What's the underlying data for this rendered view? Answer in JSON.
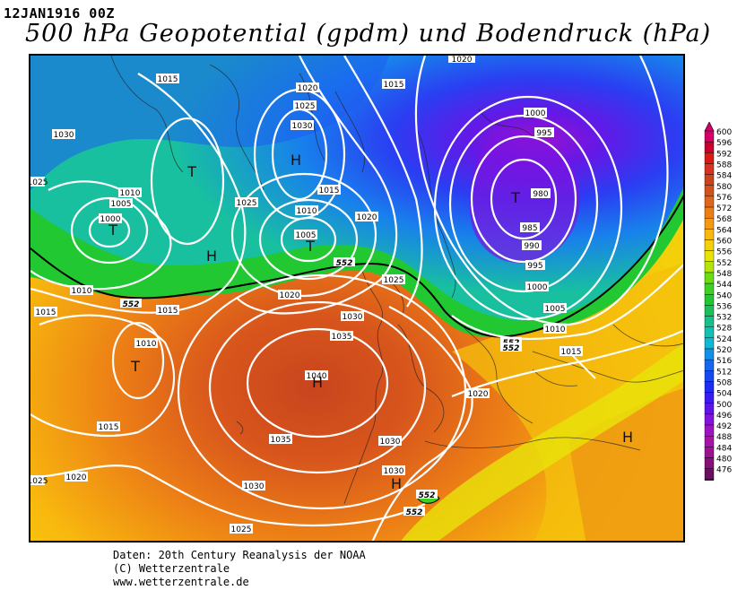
{
  "header": {
    "date": "12JAN1916 00Z",
    "title": "500 hPa Geopotential (gpdm) und Bodendruck (hPa)"
  },
  "legend": {
    "levels": [
      600,
      596,
      592,
      588,
      584,
      580,
      576,
      572,
      568,
      564,
      560,
      556,
      552,
      548,
      544,
      540,
      536,
      532,
      528,
      524,
      520,
      516,
      512,
      508,
      504,
      500,
      496,
      492,
      488,
      484,
      480,
      476
    ],
    "colors": [
      "#d4006a",
      "#c8002e",
      "#d81c14",
      "#d83220",
      "#c8441e",
      "#d2521c",
      "#e0661a",
      "#ec7e16",
      "#f49a12",
      "#f8b80e",
      "#f4d00a",
      "#e8e40a",
      "#b4e40a",
      "#6cdc14",
      "#3cd220",
      "#22c832",
      "#1cc05a",
      "#18c08c",
      "#12c0b4",
      "#10b8d4",
      "#1290e8",
      "#1468f0",
      "#1848f4",
      "#1e2cf4",
      "#3a1cf0",
      "#5e14e8",
      "#8212dc",
      "#9e12c4",
      "#a812a8",
      "#9c1290",
      "#861078",
      "#6a0e62"
    ]
  },
  "pressure_centers": [
    {
      "label": "T"
    },
    {
      "label": "H"
    },
    {
      "label": "H"
    },
    {
      "label": "T"
    },
    {
      "label": "T"
    },
    {
      "label": "T"
    },
    {
      "label": "H"
    },
    {
      "label": "T"
    },
    {
      "label": "H"
    },
    {
      "label": "H"
    }
  ],
  "isobar_labels": [
    "1015",
    "1020",
    "1025",
    "1030",
    "1015",
    "1000",
    "1030",
    "1025",
    "1010",
    "1005",
    "1000",
    "995",
    "980",
    "985",
    "990",
    "995",
    "1000",
    "1005",
    "1010",
    "1015",
    "1025",
    "1015",
    "1010",
    "1005",
    "1020",
    "1030",
    "1035",
    "1040",
    "1035",
    "1030",
    "1020",
    "1025",
    "1030",
    "1020",
    "1015",
    "1010",
    "1015",
    "1010",
    "1015",
    "1020",
    "1025",
    "1030",
    "1025",
    "1020"
  ],
  "geopotential_labels": [
    "552",
    "552",
    "552",
    "552",
    "552",
    "552"
  ],
  "credits": {
    "line1": "Daten: 20th Century Reanalysis der NOAA",
    "line2": "(C) Wetterzentrale",
    "line3": "www.wetterzentrale.de"
  }
}
